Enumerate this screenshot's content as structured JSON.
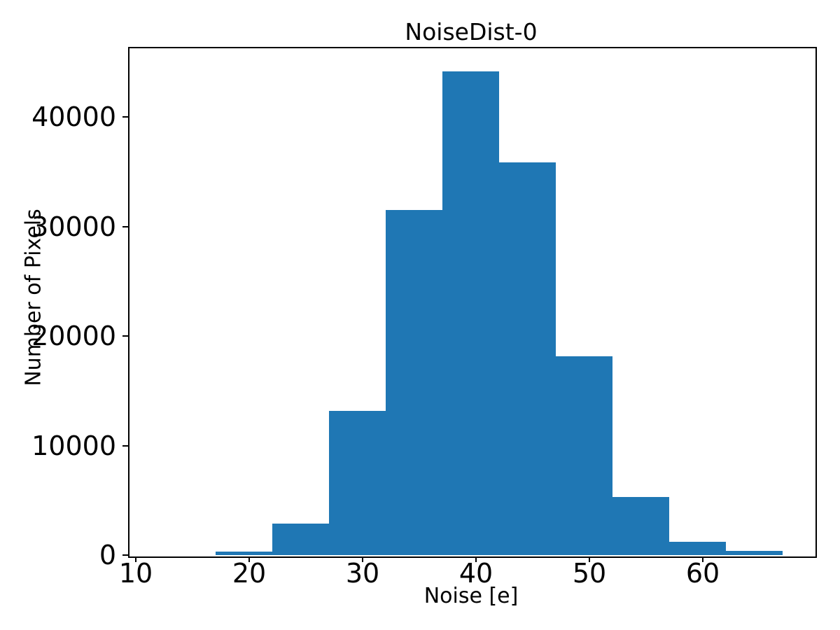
{
  "figure": {
    "background": "#ffffff",
    "spine_color": "#000000"
  },
  "chart_data": {
    "type": "bar",
    "subtype": "histogram",
    "title": "NoiseDist-0",
    "xlabel": "Noise [e]",
    "ylabel": "Number of Pixels",
    "bin_edges": [
      17,
      22,
      27,
      32,
      37,
      42,
      47,
      52,
      57,
      62,
      67
    ],
    "counts": [
      300,
      2880,
      13160,
      31500,
      44150,
      35850,
      18150,
      5300,
      1215,
      400
    ],
    "bar_color": "#1f77b4",
    "xlim": [
      9.3,
      69.8
    ],
    "ylim": [
      0,
      46390
    ],
    "x_ticks": [
      10,
      20,
      30,
      40,
      50,
      60
    ],
    "y_ticks": [
      0,
      10000,
      20000,
      30000,
      40000
    ],
    "grid": false,
    "legend": null
  }
}
